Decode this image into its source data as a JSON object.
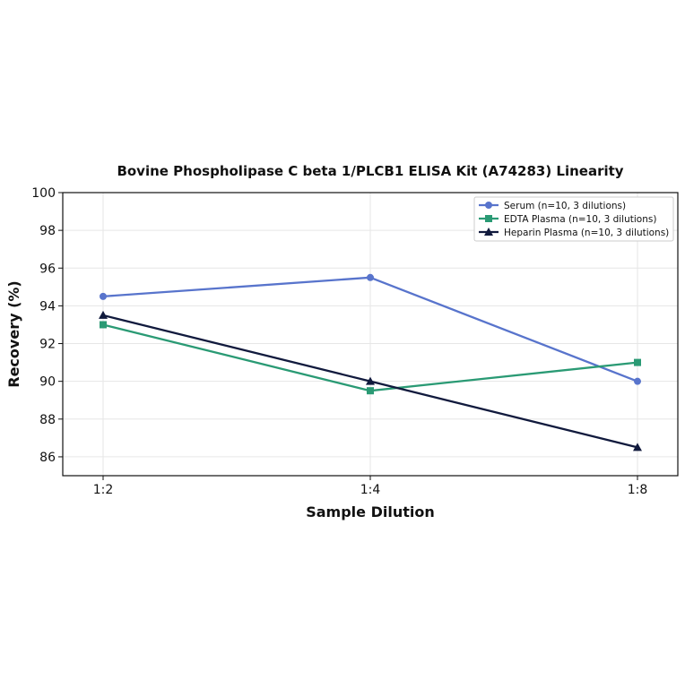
{
  "chart_data": {
    "type": "line",
    "title": "Bovine Phospholipase C beta 1/PLCB1 ELISA Kit (A74283) Linearity",
    "xlabel": "Sample Dilution",
    "ylabel": "Recovery (%)",
    "categories": [
      "1:2",
      "1:4",
      "1:8"
    ],
    "ylim": [
      85,
      100
    ],
    "yticks": [
      "86",
      "88",
      "90",
      "92",
      "94",
      "96",
      "98",
      "100"
    ],
    "grid": true,
    "legend_position": "top-right",
    "series": [
      {
        "name": "Serum (n=10, 3 dilutions)",
        "values": [
          94.5,
          95.5,
          90.0
        ],
        "color": "#5874cc",
        "marker": "circle"
      },
      {
        "name": "EDTA Plasma (n=10, 3 dilutions)",
        "values": [
          93.0,
          89.5,
          91.0
        ],
        "color": "#2a9a74",
        "marker": "square"
      },
      {
        "name": "Heparin Plasma (n=10, 3 dilutions)",
        "values": [
          93.5,
          90.0,
          86.5
        ],
        "color": "#111a3d",
        "marker": "triangle"
      }
    ]
  }
}
